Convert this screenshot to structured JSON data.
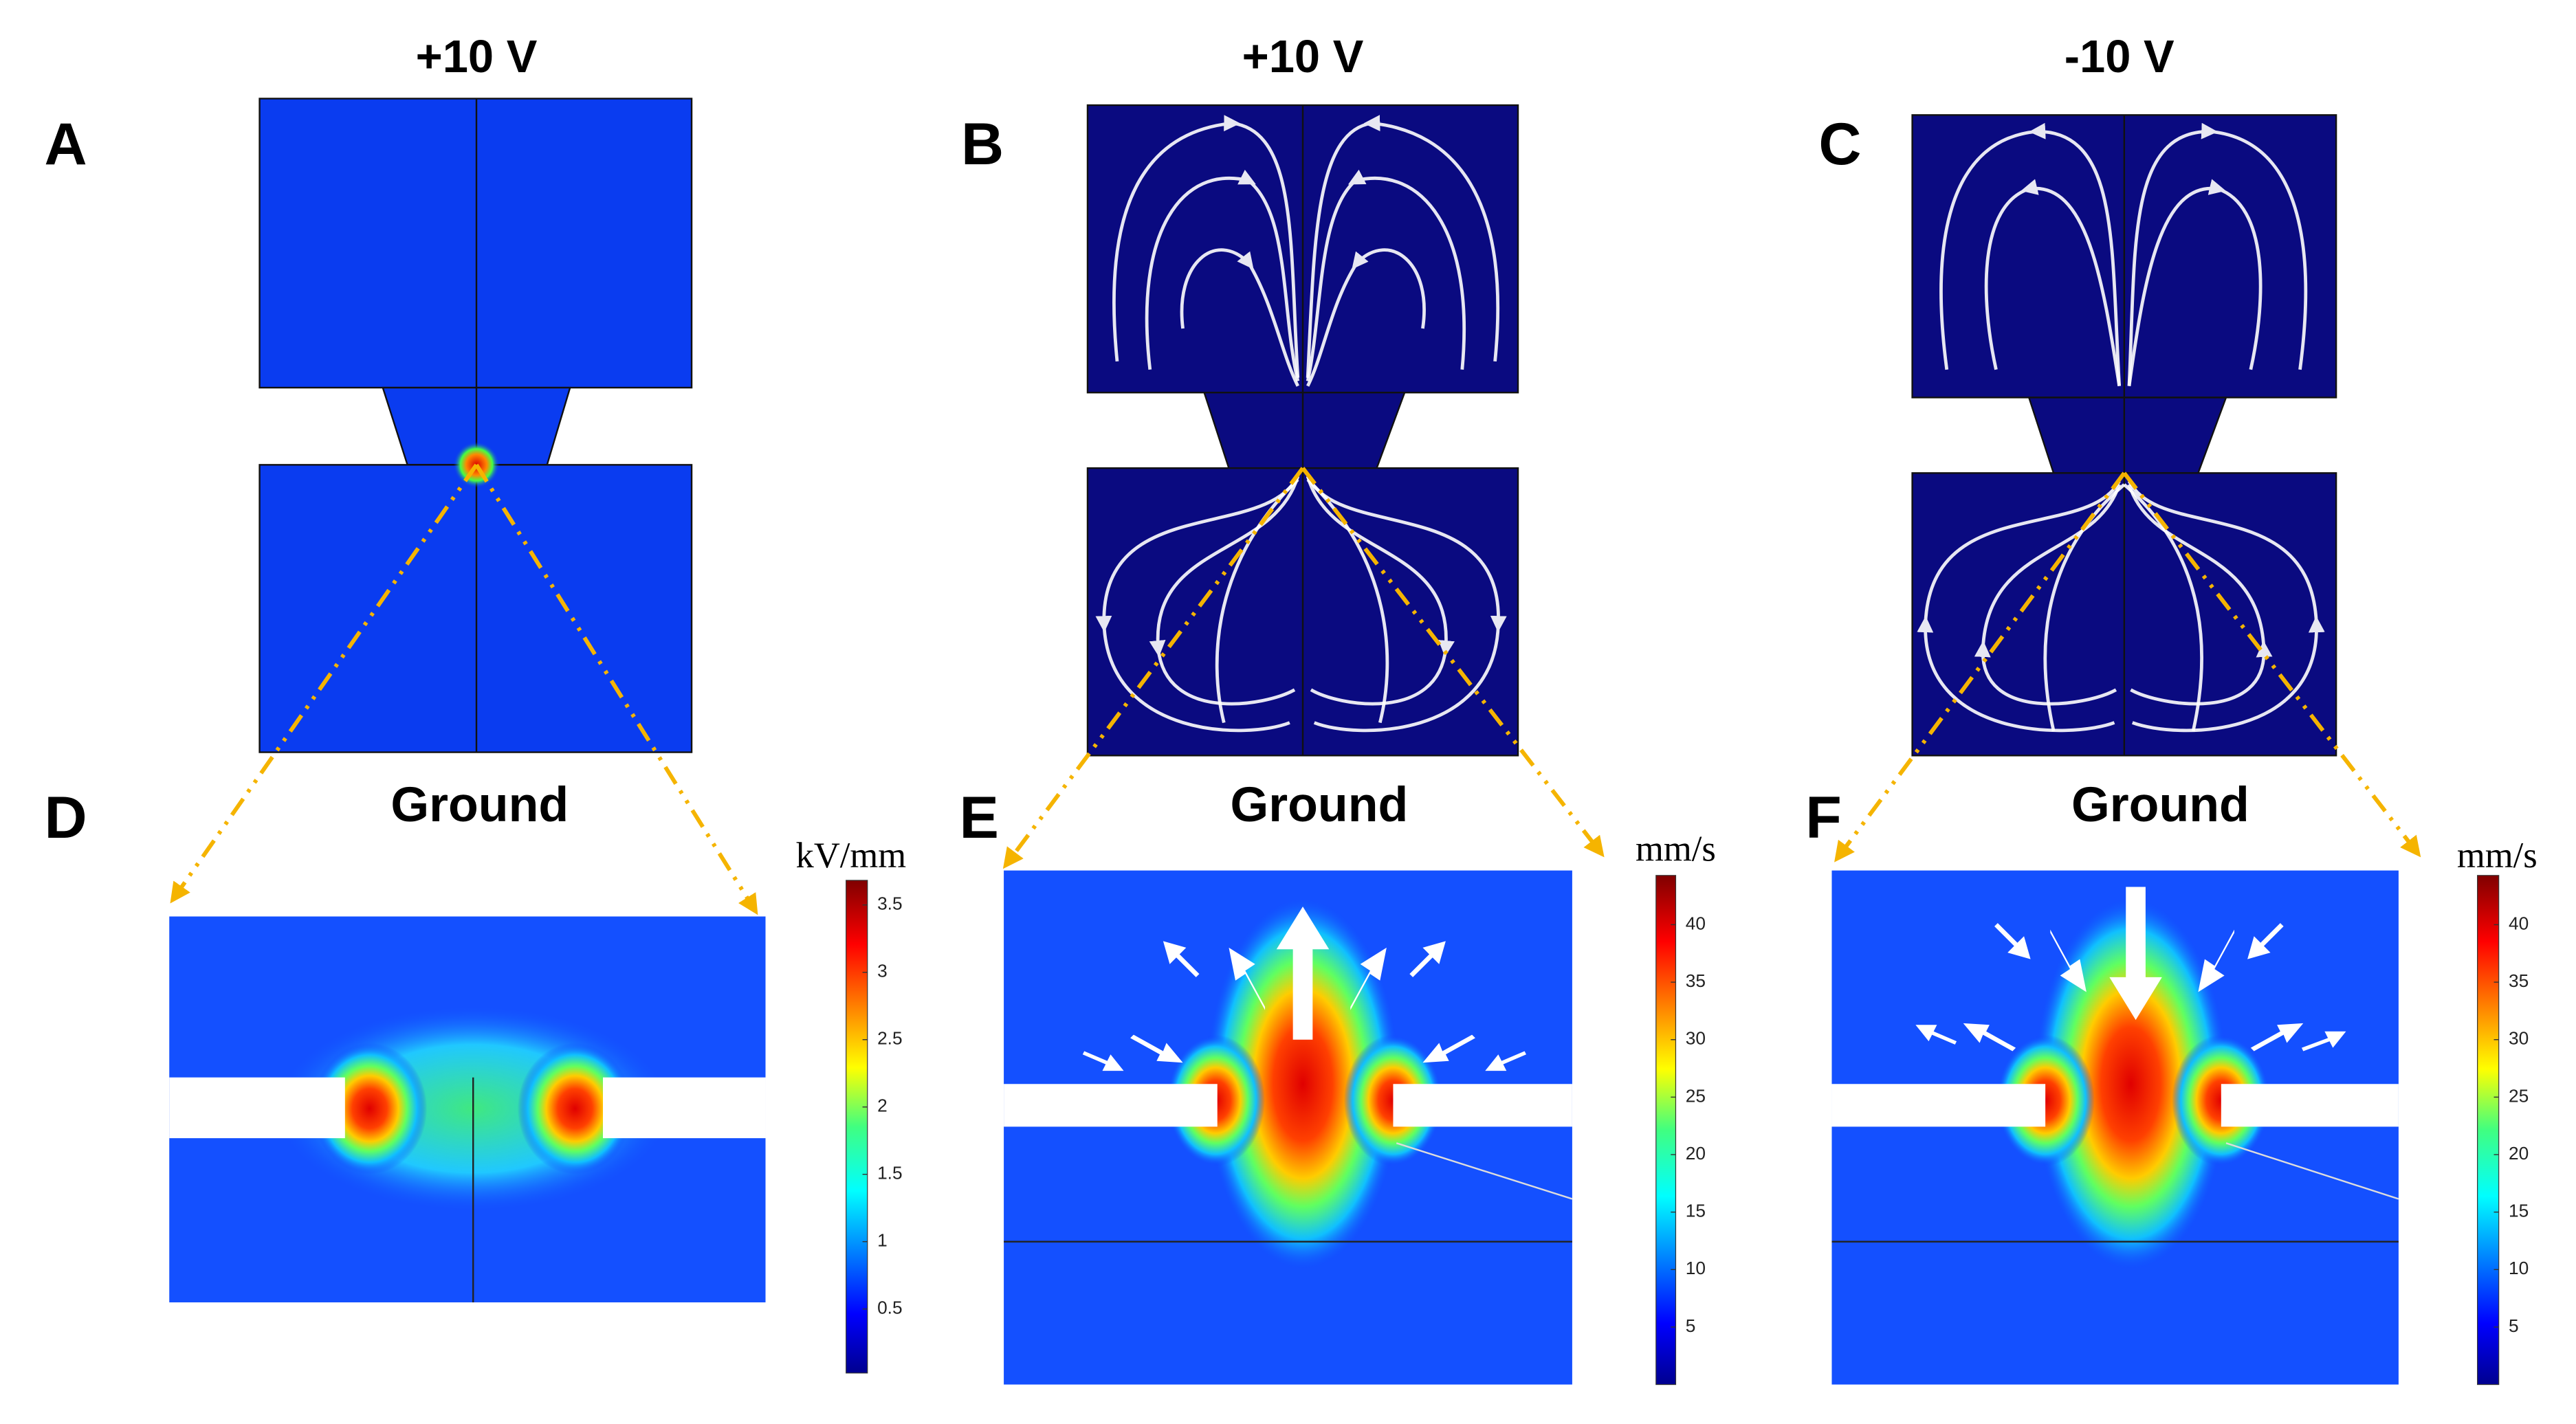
{
  "voltages": [
    "+10 V",
    "+10 V",
    "-10 V"
  ],
  "panels": [
    "A",
    "B",
    "C",
    "D",
    "E",
    "F"
  ],
  "ground_labels": [
    "Ground",
    "Ground",
    "Ground"
  ],
  "colorbars": [
    {
      "unit": "kV/mm",
      "ticks": [
        0.5,
        1,
        1.5,
        2,
        2.5,
        3,
        3.5
      ]
    },
    {
      "unit": "mm/s",
      "ticks": [
        5,
        10,
        15,
        20,
        25,
        30,
        35,
        40
      ]
    },
    {
      "unit": "mm/s",
      "ticks": [
        5,
        10,
        15,
        20,
        25,
        30,
        35,
        40
      ]
    }
  ]
}
